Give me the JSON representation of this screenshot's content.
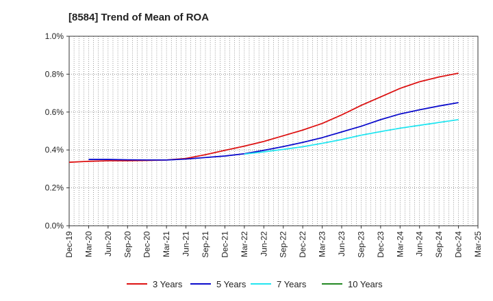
{
  "chart_data": {
    "type": "line",
    "title": "[8584]  Trend of Mean of ROA",
    "xlabel": "",
    "ylabel": "",
    "categories": [
      "Dec-19",
      "Mar-20",
      "Jun-20",
      "Sep-20",
      "Dec-20",
      "Mar-21",
      "Jun-21",
      "Sep-21",
      "Dec-21",
      "Mar-22",
      "Jun-22",
      "Sep-22",
      "Dec-22",
      "Mar-23",
      "Jun-23",
      "Sep-23",
      "Dec-23",
      "Mar-24",
      "Jun-24",
      "Sep-24",
      "Dec-24",
      "Mar-25"
    ],
    "ylim": [
      0,
      1.0
    ],
    "yticks": [
      0.0,
      0.2,
      0.4,
      0.6,
      0.8,
      1.0
    ],
    "ytick_labels": [
      "0.0%",
      "0.2%",
      "0.4%",
      "0.6%",
      "0.8%",
      "1.0%"
    ],
    "grid": true,
    "legend_position": "bottom",
    "series": [
      {
        "name": "3 Years",
        "color": "#dd1111",
        "values": [
          0.335,
          0.34,
          0.343,
          0.343,
          0.345,
          0.347,
          0.355,
          0.375,
          0.398,
          0.42,
          0.445,
          0.475,
          0.505,
          0.54,
          0.585,
          0.635,
          0.68,
          0.725,
          0.76,
          0.785,
          0.805,
          null
        ]
      },
      {
        "name": "5 Years",
        "color": "#0a0acc",
        "values": [
          null,
          0.35,
          0.35,
          0.348,
          0.347,
          0.347,
          0.352,
          0.36,
          0.368,
          0.38,
          0.398,
          0.418,
          0.44,
          0.465,
          0.495,
          0.525,
          0.56,
          0.59,
          0.612,
          0.632,
          0.65,
          null
        ]
      },
      {
        "name": "7 Years",
        "color": "#22e5f0",
        "values": [
          null,
          null,
          null,
          null,
          null,
          null,
          null,
          null,
          null,
          0.378,
          0.39,
          0.403,
          0.417,
          0.435,
          0.455,
          0.478,
          0.497,
          0.515,
          0.53,
          0.545,
          0.56,
          null
        ]
      },
      {
        "name": "10 Years",
        "color": "#228822",
        "values": [
          null,
          null,
          null,
          null,
          null,
          null,
          null,
          null,
          null,
          null,
          null,
          null,
          null,
          null,
          null,
          null,
          null,
          null,
          null,
          null,
          null,
          null
        ]
      }
    ]
  }
}
